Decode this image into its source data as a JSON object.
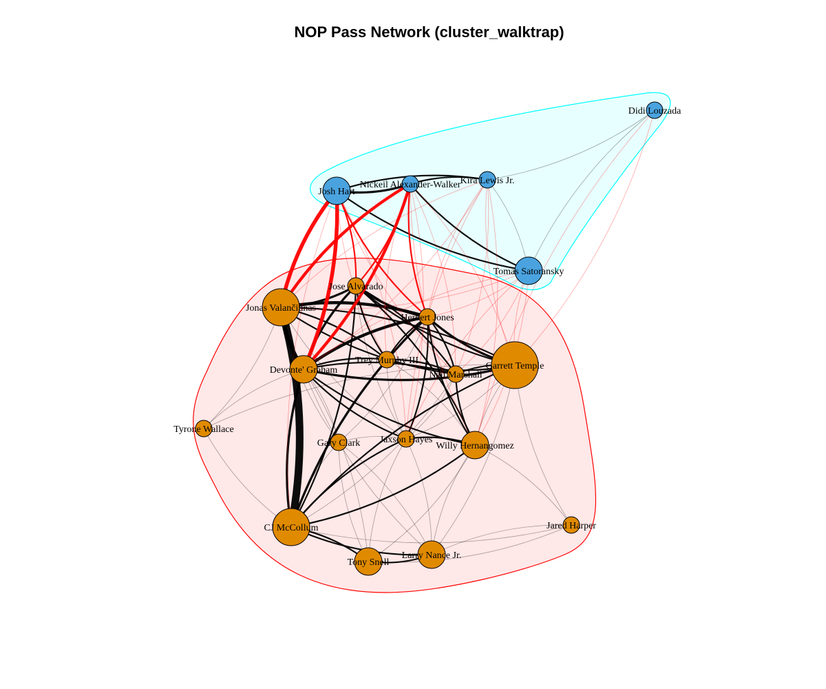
{
  "title": "NOP Pass Network (cluster_walktrap)",
  "colors": {
    "cluster_1_fill": "#e08a00",
    "cluster_2_fill": "#4aa3df",
    "cluster_1_hull": "#ffb3b3",
    "cluster_1_hull_border": "#ff0000",
    "cluster_2_hull": "#b3ffff",
    "cluster_2_hull_border": "#00ffff",
    "within_cluster_edge": "#000000",
    "between_cluster_edge": "#ff0000"
  },
  "nodes": [
    {
      "id": "jonas",
      "label": "Jonas Valančiūnas",
      "cluster": 1,
      "size": "large"
    },
    {
      "id": "jose",
      "label": "Jose Alvarado",
      "cluster": 1,
      "size": "small"
    },
    {
      "id": "herb",
      "label": "Herbert Jones",
      "cluster": 1,
      "size": "small"
    },
    {
      "id": "devonte",
      "label": "Devonte' Graham",
      "cluster": 1,
      "size": "medium"
    },
    {
      "id": "trey",
      "label": "Trey Murphy III",
      "cluster": 1,
      "size": "small"
    },
    {
      "id": "naji",
      "label": "Naji Marshall",
      "cluster": 1,
      "size": "small"
    },
    {
      "id": "garrett",
      "label": "Garrett Temple",
      "cluster": 1,
      "size": "xlarge"
    },
    {
      "id": "tyrone",
      "label": "Tyrone Wallace",
      "cluster": 1,
      "size": "small"
    },
    {
      "id": "gary",
      "label": "Gary Clark",
      "cluster": 1,
      "size": "small"
    },
    {
      "id": "jaxson",
      "label": "Jaxson Hayes",
      "cluster": 1,
      "size": "small"
    },
    {
      "id": "willy",
      "label": "Willy Hernangomez",
      "cluster": 1,
      "size": "medium"
    },
    {
      "id": "jared",
      "label": "Jared Harper",
      "cluster": 1,
      "size": "small"
    },
    {
      "id": "cj",
      "label": "CJ McCollum",
      "cluster": 1,
      "size": "large"
    },
    {
      "id": "tony",
      "label": "Tony Snell",
      "cluster": 1,
      "size": "medium"
    },
    {
      "id": "larry",
      "label": "Larry Nance Jr.",
      "cluster": 1,
      "size": "medium"
    },
    {
      "id": "josh",
      "label": "Josh Hart",
      "cluster": 2,
      "size": "medium"
    },
    {
      "id": "nickeil",
      "label": "Nickeil Alexander-Walker",
      "cluster": 2,
      "size": "small"
    },
    {
      "id": "kira",
      "label": "Kira Lewis Jr.",
      "cluster": 2,
      "size": "small"
    },
    {
      "id": "didi",
      "label": "Didi Louzada",
      "cluster": 2,
      "size": "small"
    },
    {
      "id": "tomas",
      "label": "Tomas Satoransky",
      "cluster": 2,
      "size": "medium"
    }
  ],
  "edges": [
    {
      "from": "jonas",
      "to": "cj",
      "weight": 10
    },
    {
      "from": "jonas",
      "to": "devonte",
      "weight": 5
    },
    {
      "from": "jonas",
      "to": "herb",
      "weight": 4
    },
    {
      "from": "jonas",
      "to": "jose",
      "weight": 3
    },
    {
      "from": "jonas",
      "to": "garrett",
      "weight": 2
    },
    {
      "from": "jonas",
      "to": "naji",
      "weight": 2
    },
    {
      "from": "jonas",
      "to": "trey",
      "weight": 2
    },
    {
      "from": "jonas",
      "to": "jaxson",
      "weight": 1
    },
    {
      "from": "jonas",
      "to": "tyrone",
      "weight": 1
    },
    {
      "from": "jonas",
      "to": "gary",
      "weight": 1
    },
    {
      "from": "devonte",
      "to": "herb",
      "weight": 4
    },
    {
      "from": "devonte",
      "to": "cj",
      "weight": 3
    },
    {
      "from": "devonte",
      "to": "jose",
      "weight": 3
    },
    {
      "from": "devonte",
      "to": "garrett",
      "weight": 3
    },
    {
      "from": "devonte",
      "to": "naji",
      "weight": 2
    },
    {
      "from": "devonte",
      "to": "willy",
      "weight": 2
    },
    {
      "from": "devonte",
      "to": "trey",
      "weight": 2
    },
    {
      "from": "devonte",
      "to": "jaxson",
      "weight": 2
    },
    {
      "from": "devonte",
      "to": "tony",
      "weight": 1
    },
    {
      "from": "devonte",
      "to": "larry",
      "weight": 1
    },
    {
      "from": "devonte",
      "to": "gary",
      "weight": 1
    },
    {
      "from": "devonte",
      "to": "tyrone",
      "weight": 1
    },
    {
      "from": "cj",
      "to": "herb",
      "weight": 3
    },
    {
      "from": "cj",
      "to": "jose",
      "weight": 2
    },
    {
      "from": "cj",
      "to": "jaxson",
      "weight": 2
    },
    {
      "from": "cj",
      "to": "willy",
      "weight": 2
    },
    {
      "from": "cj",
      "to": "tony",
      "weight": 2
    },
    {
      "from": "cj",
      "to": "larry",
      "weight": 2
    },
    {
      "from": "cj",
      "to": "garrett",
      "weight": 2
    },
    {
      "from": "cj",
      "to": "naji",
      "weight": 1
    },
    {
      "from": "cj",
      "to": "gary",
      "weight": 1
    },
    {
      "from": "cj",
      "to": "jared",
      "weight": 1
    },
    {
      "from": "herb",
      "to": "jose",
      "weight": 3
    },
    {
      "from": "herb",
      "to": "garrett",
      "weight": 3
    },
    {
      "from": "herb",
      "to": "naji",
      "weight": 2
    },
    {
      "from": "herb",
      "to": "trey",
      "weight": 2
    },
    {
      "from": "herb",
      "to": "jaxson",
      "weight": 2
    },
    {
      "from": "herb",
      "to": "willy",
      "weight": 2
    },
    {
      "from": "herb",
      "to": "gary",
      "weight": 1
    },
    {
      "from": "jose",
      "to": "trey",
      "weight": 2
    },
    {
      "from": "jose",
      "to": "naji",
      "weight": 2
    },
    {
      "from": "jose",
      "to": "garrett",
      "weight": 2
    },
    {
      "from": "jose",
      "to": "willy",
      "weight": 2
    },
    {
      "from": "jose",
      "to": "jaxson",
      "weight": 1
    },
    {
      "from": "trey",
      "to": "naji",
      "weight": 2
    },
    {
      "from": "trey",
      "to": "garrett",
      "weight": 2
    },
    {
      "from": "trey",
      "to": "willy",
      "weight": 1
    },
    {
      "from": "trey",
      "to": "jaxson",
      "weight": 1
    },
    {
      "from": "naji",
      "to": "garrett",
      "weight": 2
    },
    {
      "from": "naji",
      "to": "willy",
      "weight": 2
    },
    {
      "from": "naji",
      "to": "jaxson",
      "weight": 1
    },
    {
      "from": "garrett",
      "to": "willy",
      "weight": 1
    },
    {
      "from": "garrett",
      "to": "jaxson",
      "weight": 1
    },
    {
      "from": "willy",
      "to": "jaxson",
      "weight": 2
    },
    {
      "from": "willy",
      "to": "tony",
      "weight": 1
    },
    {
      "from": "willy",
      "to": "larry",
      "weight": 1
    },
    {
      "from": "willy",
      "to": "jared",
      "weight": 1
    },
    {
      "from": "jaxson",
      "to": "tony",
      "weight": 1
    },
    {
      "from": "jaxson",
      "to": "larry",
      "weight": 1
    },
    {
      "from": "tony",
      "to": "larry",
      "weight": 2
    },
    {
      "from": "larry",
      "to": "jared",
      "weight": 1
    },
    {
      "from": "tony",
      "to": "jared",
      "weight": 1
    },
    {
      "from": "gary",
      "to": "jaxson",
      "weight": 1
    },
    {
      "from": "gary",
      "to": "tony",
      "weight": 1
    },
    {
      "from": "gary",
      "to": "larry",
      "weight": 1
    },
    {
      "from": "tyrone",
      "to": "cj",
      "weight": 1
    },
    {
      "from": "tyrone",
      "to": "garrett",
      "weight": 1
    },
    {
      "from": "garrett",
      "to": "jared",
      "weight": 1
    },
    {
      "from": "garrett",
      "to": "larry",
      "weight": 1
    },
    {
      "from": "josh",
      "to": "nickeil",
      "weight": 3
    },
    {
      "from": "josh",
      "to": "kira",
      "weight": 2
    },
    {
      "from": "josh",
      "to": "tomas",
      "weight": 2
    },
    {
      "from": "nickeil",
      "to": "kira",
      "weight": 2
    },
    {
      "from": "nickeil",
      "to": "tomas",
      "weight": 2
    },
    {
      "from": "kira",
      "to": "tomas",
      "weight": 1
    },
    {
      "from": "kira",
      "to": "didi",
      "weight": 1
    },
    {
      "from": "tomas",
      "to": "didi",
      "weight": 1
    },
    {
      "from": "josh",
      "to": "jonas",
      "weight": 5
    },
    {
      "from": "josh",
      "to": "devonte",
      "weight": 5
    },
    {
      "from": "nickeil",
      "to": "jonas",
      "weight": 4
    },
    {
      "from": "nickeil",
      "to": "devonte",
      "weight": 4
    },
    {
      "from": "josh",
      "to": "herb",
      "weight": 2
    },
    {
      "from": "josh",
      "to": "jose",
      "weight": 2
    },
    {
      "from": "nickeil",
      "to": "herb",
      "weight": 2
    },
    {
      "from": "nickeil",
      "to": "jose",
      "weight": 2
    },
    {
      "from": "josh",
      "to": "cj",
      "weight": 1
    },
    {
      "from": "nickeil",
      "to": "naji",
      "weight": 1
    },
    {
      "from": "nickeil",
      "to": "trey",
      "weight": 1
    },
    {
      "from": "nickeil",
      "to": "garrett",
      "weight": 1
    },
    {
      "from": "nickeil",
      "to": "willy",
      "weight": 1
    },
    {
      "from": "nickeil",
      "to": "jaxson",
      "weight": 1
    },
    {
      "from": "kira",
      "to": "jonas",
      "weight": 1
    },
    {
      "from": "kira",
      "to": "devonte",
      "weight": 1
    },
    {
      "from": "kira",
      "to": "herb",
      "weight": 1
    },
    {
      "from": "kira",
      "to": "naji",
      "weight": 1
    },
    {
      "from": "kira",
      "to": "jaxson",
      "weight": 1
    },
    {
      "from": "kira",
      "to": "willy",
      "weight": 1
    },
    {
      "from": "kira",
      "to": "garrett",
      "weight": 1
    },
    {
      "from": "tomas",
      "to": "jonas",
      "weight": 1
    },
    {
      "from": "tomas",
      "to": "devonte",
      "weight": 1
    },
    {
      "from": "tomas",
      "to": "herb",
      "weight": 1
    },
    {
      "from": "tomas",
      "to": "garrett",
      "weight": 1
    },
    {
      "from": "tomas",
      "to": "willy",
      "weight": 1
    },
    {
      "from": "tomas",
      "to": "jaxson",
      "weight": 1
    },
    {
      "from": "tomas",
      "to": "naji",
      "weight": 1
    },
    {
      "from": "josh",
      "to": "trey",
      "weight": 1
    },
    {
      "from": "josh",
      "to": "jaxson",
      "weight": 1
    },
    {
      "from": "josh",
      "to": "naji",
      "weight": 1
    },
    {
      "from": "didi",
      "to": "garrett",
      "weight": 1
    },
    {
      "from": "didi",
      "to": "willy",
      "weight": 1
    }
  ]
}
